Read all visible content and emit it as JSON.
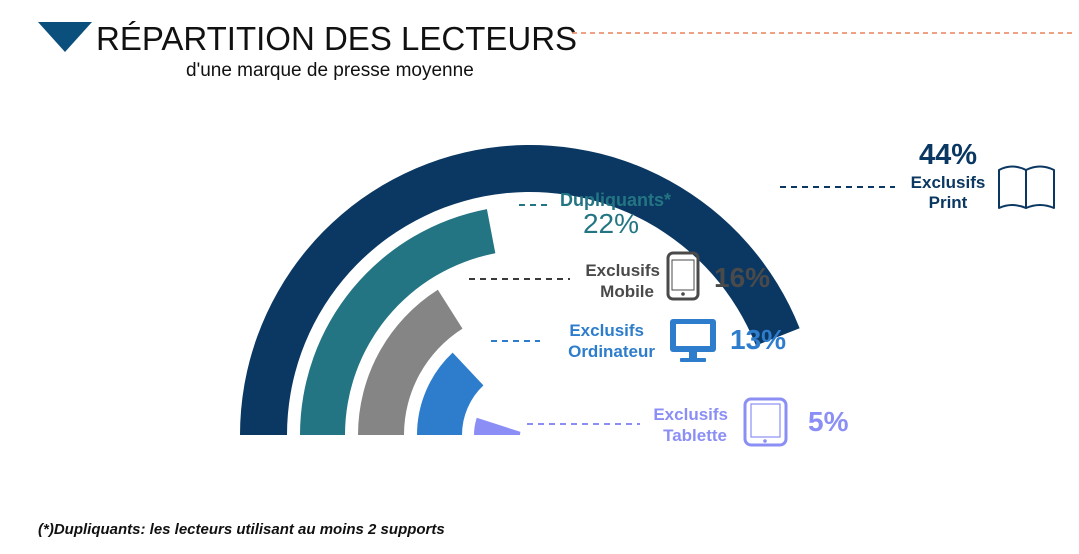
{
  "header": {
    "title": "RÉPARTITION DES LECTEURS",
    "subtitle": "d'une marque de presse moyenne"
  },
  "footnote": "(*)Dupliquants: les lecteurs utilisant au moins 2 supports",
  "chart_data": {
    "type": "radial-bar",
    "segments": [
      {
        "id": "print",
        "value": 44,
        "pct_label": "44%",
        "label_lines": [
          "Exclusifs",
          "Print"
        ],
        "color": "#0b3862",
        "icon": "book-icon"
      },
      {
        "id": "dupliquants",
        "value": 22,
        "pct_label": "22%",
        "label_lines": [
          "Dupliquants*"
        ],
        "color": "#237583",
        "icon": ""
      },
      {
        "id": "mobile",
        "value": 16,
        "pct_label": "16%",
        "label_lines": [
          "Exclusifs",
          "Mobile"
        ],
        "color": "#858585",
        "icon": "smartphone-icon"
      },
      {
        "id": "ordinateur",
        "value": 13,
        "pct_label": "13%",
        "label_lines": [
          "Exclusifs",
          "Ordinateur"
        ],
        "color": "#2e7dcc",
        "icon": "monitor-icon"
      },
      {
        "id": "tablette",
        "value": 5,
        "pct_label": "5%",
        "label_lines": [
          "Exclusifs",
          "Tablette"
        ],
        "color": "#8b8ff5",
        "icon": "tablet-icon"
      }
    ],
    "label_colors": {
      "print": "#0b3862",
      "dupliquants": "#237583",
      "mobile": "#4a4a4a",
      "ordinateur": "#2e7dcc",
      "tablette": "#8b8ff5"
    },
    "header_accent": "#0b4f7c",
    "dash_color": "#e8845a"
  }
}
